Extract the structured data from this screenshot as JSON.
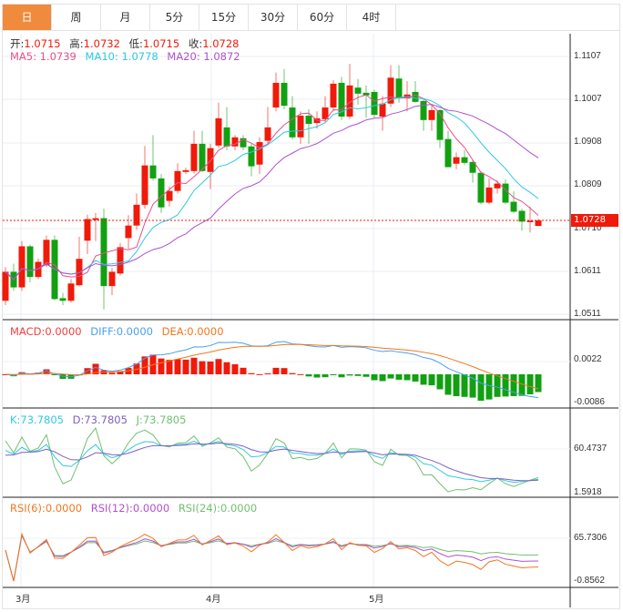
{
  "tabs": [
    "日",
    "周",
    "月",
    "5分",
    "15分",
    "30分",
    "60分",
    "4时"
  ],
  "active_tab": 0,
  "ohlc_legend": {
    "open_label": "开:",
    "open": "1.0715",
    "high_label": "高:",
    "high": "1.0732",
    "low_label": "低:",
    "low": "1.0715",
    "close_label": "收:",
    "close": "1.0728"
  },
  "ma_legend": {
    "ma5": "MA5: 1.0739",
    "ma10": "MA10: 1.0778",
    "ma20": "MA20: 1.0872"
  },
  "macd_legend": {
    "macd": "MACD:0.0000",
    "diff": "DIFF:0.0000",
    "dea": "DEA:0.0000"
  },
  "kdj_legend": {
    "k": "K:73.7805",
    "d": "D:73.7805",
    "j": "J:73.7805"
  },
  "rsi_legend": {
    "rsi6": "RSI(6):0.0000",
    "rsi12": "RSI(12):0.0000",
    "rsi24": "RSI(24):0.0000"
  },
  "price_axis": [
    "1.1107",
    "1.1007",
    "1.0908",
    "1.0809",
    "1.0710",
    "1.0611",
    "1.0511"
  ],
  "last_price": "1.0728",
  "macd_axis": [
    "0.0022",
    "-0.0086"
  ],
  "kdj_axis": [
    "60.4737",
    "1.5918"
  ],
  "rsi_axis": [
    "65.7306",
    "-0.8562"
  ],
  "x_axis": [
    "3月",
    "4月",
    "5月"
  ],
  "colors": {
    "up": "#f01a0a",
    "down": "#12a012",
    "ma5": "#e8508a",
    "ma10": "#30c8e0",
    "ma20": "#b050d0",
    "accent": "#f08a3c",
    "diff": "#4aa0f0",
    "dea": "#f07820",
    "k": "#30c8e0",
    "d": "#8060c0",
    "j": "#70c070",
    "rsi6": "#f07820",
    "rsi12": "#b050d0",
    "rsi24": "#70c070"
  },
  "chart_data": {
    "type": "candlestick",
    "ylim": [
      1.0511,
      1.1107
    ],
    "candles": [
      [
        1.0542,
        1.062,
        1.0532,
        1.0609
      ],
      [
        1.0609,
        1.0628,
        1.0565,
        1.0573
      ],
      [
        1.0573,
        1.068,
        1.0565,
        1.0668
      ],
      [
        1.0668,
        1.0672,
        1.0585,
        1.0597
      ],
      [
        1.0597,
        1.064,
        1.0592,
        1.0632
      ],
      [
        1.0624,
        1.0693,
        1.062,
        1.0683
      ],
      [
        1.0683,
        1.0693,
        1.0543,
        1.0546
      ],
      [
        1.0548,
        1.056,
        1.0532,
        1.0542
      ],
      [
        1.0542,
        1.0592,
        1.0538,
        1.0582
      ],
      [
        1.0578,
        1.069,
        1.0575,
        1.0639
      ],
      [
        1.0681,
        1.0741,
        1.065,
        1.0731
      ],
      [
        1.0729,
        1.0745,
        1.068,
        1.0733
      ],
      [
        1.0733,
        1.0755,
        1.0522,
        1.0576
      ],
      [
        1.0576,
        1.0618,
        1.0555,
        1.0609
      ],
      [
        1.0605,
        1.0675,
        1.06,
        1.0666
      ],
      [
        1.0687,
        1.074,
        1.0662,
        1.0716
      ],
      [
        1.0716,
        1.079,
        1.0706,
        1.0764
      ],
      [
        1.0764,
        1.09,
        1.0755,
        1.0855
      ],
      [
        1.0855,
        1.0925,
        1.082,
        1.0825
      ],
      [
        1.0825,
        1.0835,
        1.0745,
        1.0758
      ],
      [
        1.0773,
        1.0806,
        1.076,
        1.0796
      ],
      [
        1.0796,
        1.086,
        1.079,
        1.0842
      ],
      [
        1.084,
        1.085,
        1.0835,
        1.0844
      ],
      [
        1.0842,
        1.0935,
        1.0836,
        1.0905
      ],
      [
        1.0905,
        1.0935,
        1.084,
        1.0842
      ],
      [
        1.084,
        1.0905,
        1.08,
        1.0895
      ],
      [
        1.0901,
        1.1,
        1.0895,
        1.0964
      ],
      [
        1.0943,
        1.099,
        1.089,
        1.0899
      ],
      [
        1.0899,
        1.0925,
        1.089,
        1.092
      ],
      [
        1.0918,
        1.0925,
        1.089,
        1.0897
      ],
      [
        1.0899,
        1.0905,
        1.083,
        1.0853
      ],
      [
        1.0857,
        1.092,
        1.0835,
        1.0909
      ],
      [
        1.0912,
        1.099,
        1.0905,
        1.0943
      ],
      [
        1.0989,
        1.107,
        1.098,
        1.1046
      ],
      [
        1.1046,
        1.1078,
        1.0985,
        1.0993
      ],
      [
        1.0989,
        1.1015,
        1.0915,
        1.092
      ],
      [
        1.092,
        1.098,
        1.0905,
        1.097
      ],
      [
        1.097,
        1.0985,
        1.0905,
        1.0951
      ],
      [
        1.0953,
        1.098,
        1.094,
        1.0964
      ],
      [
        1.0962,
        1.1015,
        1.0955,
        1.0989
      ],
      [
        1.0989,
        1.1052,
        1.098,
        1.1044
      ],
      [
        1.1046,
        1.106,
        1.096,
        1.0968
      ],
      [
        1.0968,
        1.109,
        1.0962,
        1.104
      ],
      [
        1.1035,
        1.1055,
        1.0995,
        1.1021
      ],
      [
        1.1023,
        1.104,
        1.0965,
        1.1017
      ],
      [
        1.1025,
        1.103,
        1.0965,
        1.0972
      ],
      [
        1.0968,
        1.1015,
        1.0935,
        1.0998
      ],
      [
        1.0998,
        1.1087,
        1.099,
        1.1058
      ],
      [
        1.1056,
        1.1087,
        1.1,
        1.101
      ],
      [
        1.101,
        1.105,
        1.098,
        1.1019
      ],
      [
        1.1025,
        1.105,
        1.1,
        1.1002
      ],
      [
        1.1004,
        1.101,
        1.0935,
        1.096
      ],
      [
        1.096,
        1.0995,
        1.0935,
        1.0983
      ],
      [
        1.0983,
        1.0985,
        1.0895,
        1.0914
      ],
      [
        1.0916,
        1.0935,
        1.0851,
        1.0851
      ],
      [
        1.0859,
        1.0885,
        1.0846,
        1.0874
      ],
      [
        1.0874,
        1.089,
        1.0856,
        1.0861
      ],
      [
        1.0863,
        1.0868,
        1.0815,
        1.0838
      ],
      [
        1.0838,
        1.0842,
        1.0765,
        1.0769
      ],
      [
        1.0769,
        1.0825,
        1.0765,
        1.0804
      ],
      [
        1.0802,
        1.0821,
        1.079,
        1.0813
      ],
      [
        1.0813,
        1.0823,
        1.0765,
        1.0769
      ],
      [
        1.0771,
        1.0795,
        1.0745,
        1.0748
      ],
      [
        1.075,
        1.0755,
        1.0704,
        1.0725
      ],
      [
        1.0725,
        1.076,
        1.07,
        1.0727
      ],
      [
        1.0715,
        1.0732,
        1.0715,
        1.0728
      ]
    ]
  }
}
